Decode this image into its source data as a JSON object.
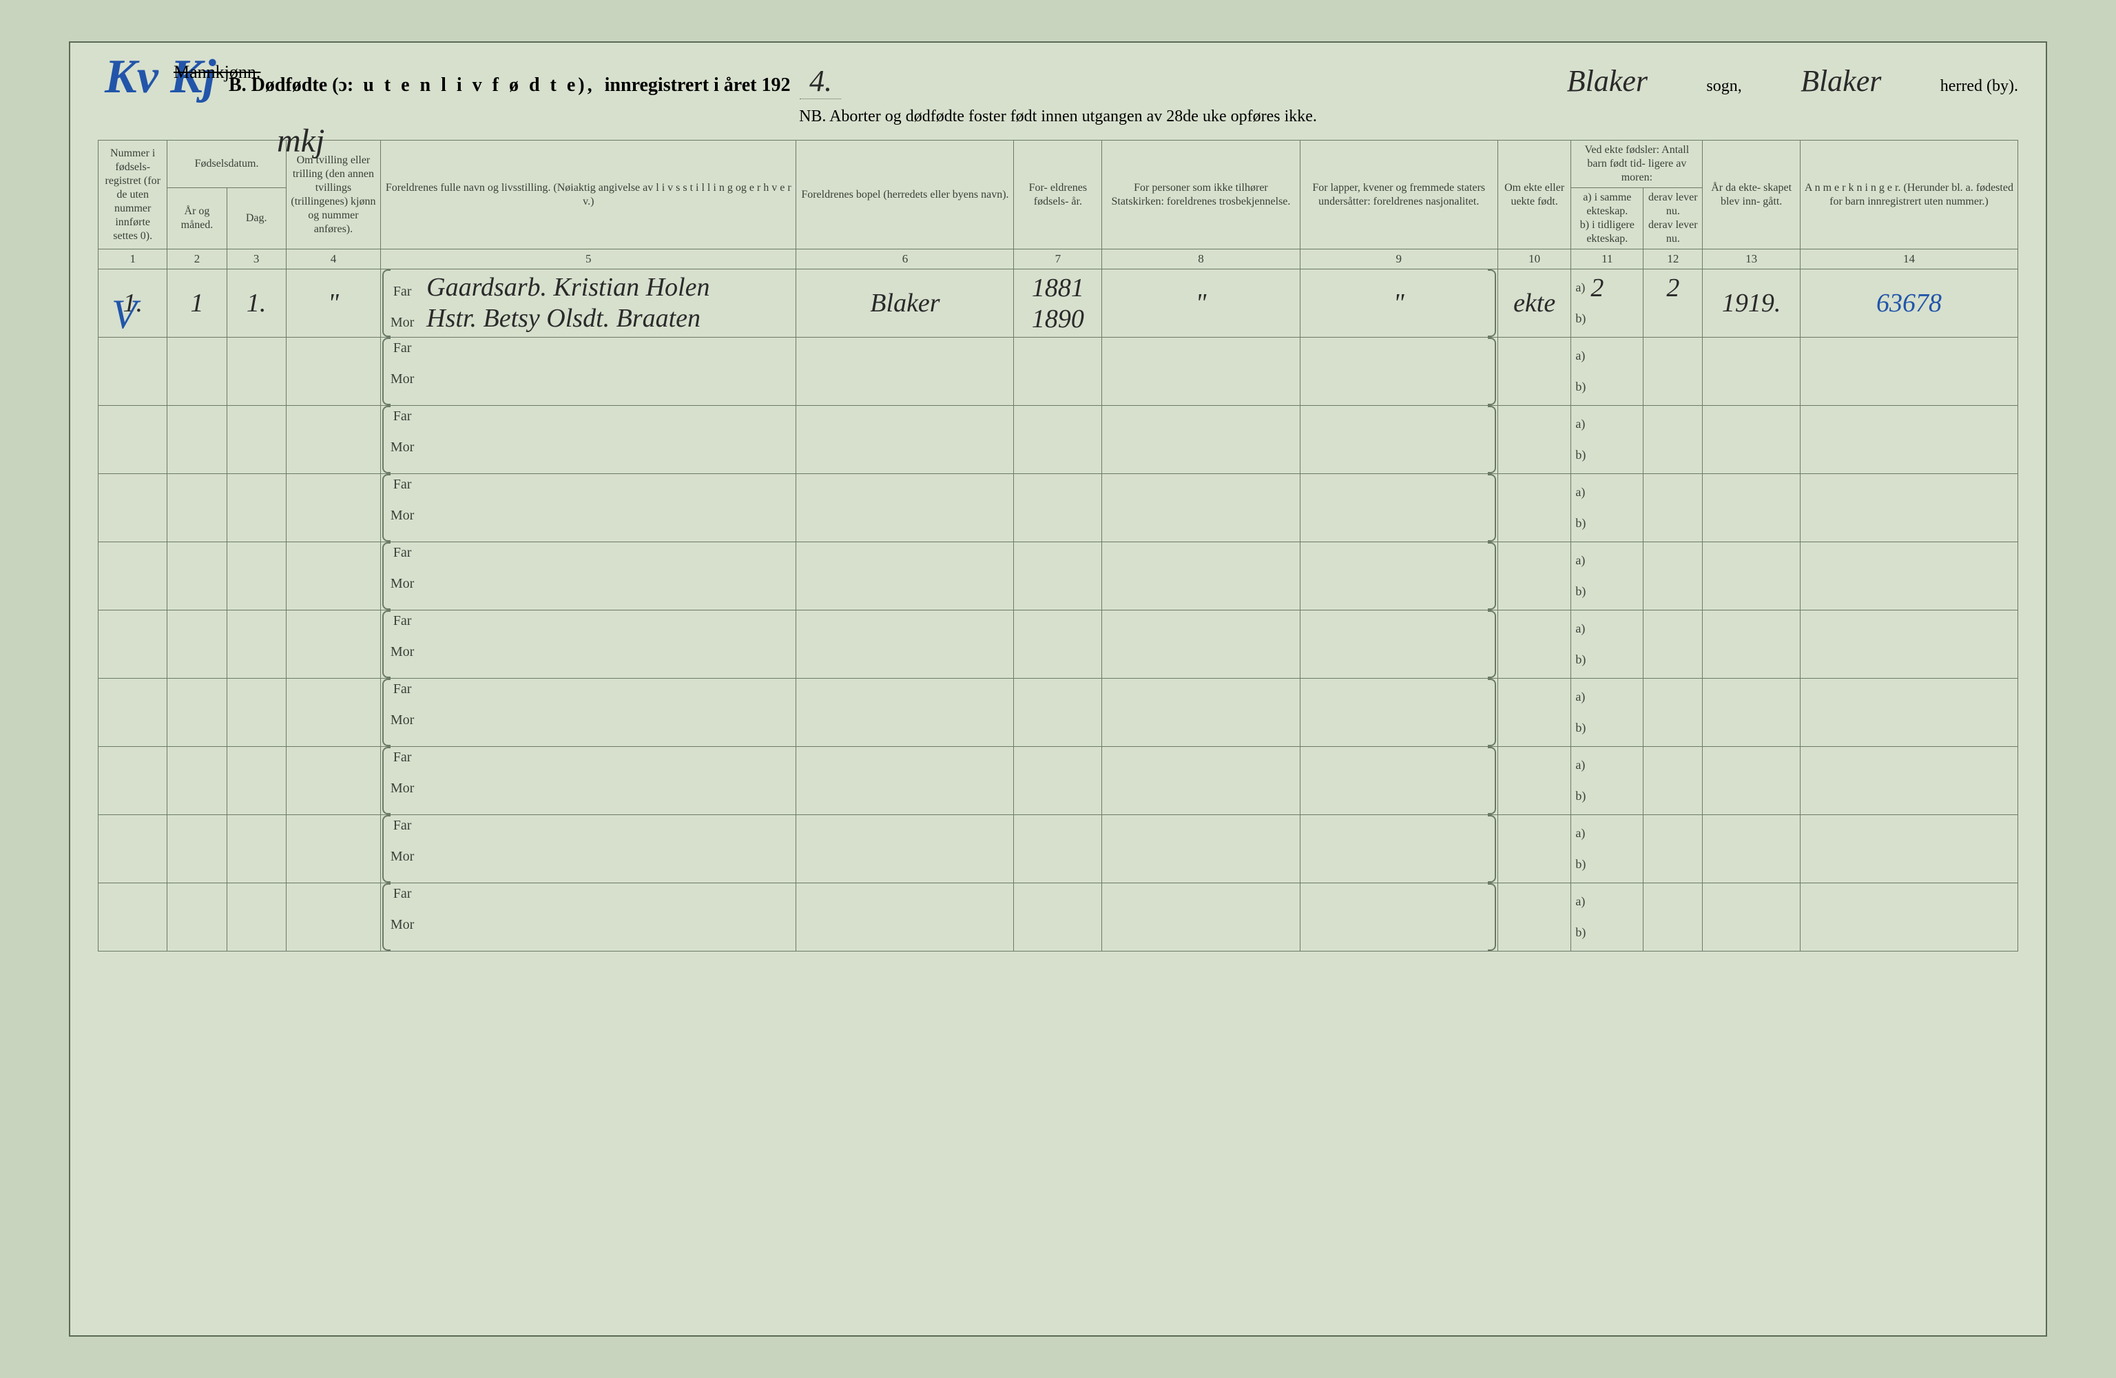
{
  "colors": {
    "page_bg": "#d7e0cd",
    "outer_bg": "#c9d4bf",
    "rule": "#6b7a66",
    "print_text": "#3a4038",
    "blue_ink": "#2255aa",
    "black_ink": "#2a2a2a"
  },
  "typography": {
    "print_font": "Times New Roman",
    "handwriting_font": "Brush Script MT",
    "header_fontsize_pt": 21,
    "sub_fontsize_pt": 18,
    "hw_large_pt": 52,
    "hw_entry_pt": 28
  },
  "annotations": {
    "top_left_blue": "Kv Kj",
    "top_strikethrough": "Mannkjønn.",
    "mkj": "mkj",
    "v_mark": "V"
  },
  "header": {
    "prefix": "B.  Dødfødte (ɔ:",
    "spaced": "u t e n   l i v   f ø d t e),",
    "registered": "innregistrert i året 192",
    "year_suffix_handwritten": "4.",
    "sogn_value": "Blaker",
    "sogn_label": "sogn,",
    "herred_value": "Blaker",
    "herred_label": "herred (by).",
    "nb": "NB.  Aborter og dødfødte foster født innen utgangen av 28de uke opføres ikke."
  },
  "columns": {
    "c1": "Nummer i fødsels- registret (for de uten nummer innførte settes 0).",
    "c2_group": "Fødselsdatum.",
    "c2": "År og måned.",
    "c3": "Dag.",
    "c4": "Om tvilling eller trilling (den annen tvillings (trillingenes) kjønn og nummer anføres).",
    "c5": "Foreldrenes fulle navn og livsstilling. (Nøiaktig angivelse av l i v s s t i l l i n g  og  e r h v e r v.)",
    "c6": "Foreldrenes bopel (herredets eller byens navn).",
    "c7": "For- eldrenes fødsels- år.",
    "c8": "For personer som ikke tilhører Statskirken: foreldrenes trosbekjennelse.",
    "c9": "For lapper, kvener og fremmede staters undersåtter: foreldrenes nasjonalitet.",
    "c10": "Om ekte eller uekte født.",
    "c11_group": "Ved ekte fødsler: Antall barn født tid- ligere av moren:",
    "c11": "a) i samme ekteskap.",
    "c12": "derav lever nu.",
    "c11b": "b) i tidligere ekteskap.",
    "c12b": "derav lever nu.",
    "c13": "År da ekte- skapet blev inn- gått.",
    "c14": "A n m e r k n i n g e r. (Herunder bl. a. fødested for barn innregistrert uten nummer.)"
  },
  "colnums": [
    "1",
    "2",
    "3",
    "4",
    "5",
    "6",
    "7",
    "8",
    "9",
    "10",
    "11",
    "12",
    "13",
    "14"
  ],
  "labels": {
    "far": "Far",
    "mor": "Mor",
    "a": "a)",
    "b": "b)"
  },
  "rows": [
    {
      "num": "1.",
      "ar_maaned": "1",
      "dag": "1.",
      "tvilling": "\"",
      "far": "Gaardsarb. Kristian Holen",
      "mor": "Hstr. Betsy Olsdt. Braaten",
      "bopel": "Blaker",
      "far_aar": "1881",
      "mor_aar": "1890",
      "tros": "\"",
      "nasj": "\"",
      "ekte": "ekte",
      "a_val": "2",
      "a_lever": "2",
      "b_val": "",
      "b_lever": "",
      "ekteskap_aar": "1919.",
      "anm": "63678"
    },
    {},
    {},
    {},
    {},
    {},
    {},
    {},
    {},
    {}
  ]
}
